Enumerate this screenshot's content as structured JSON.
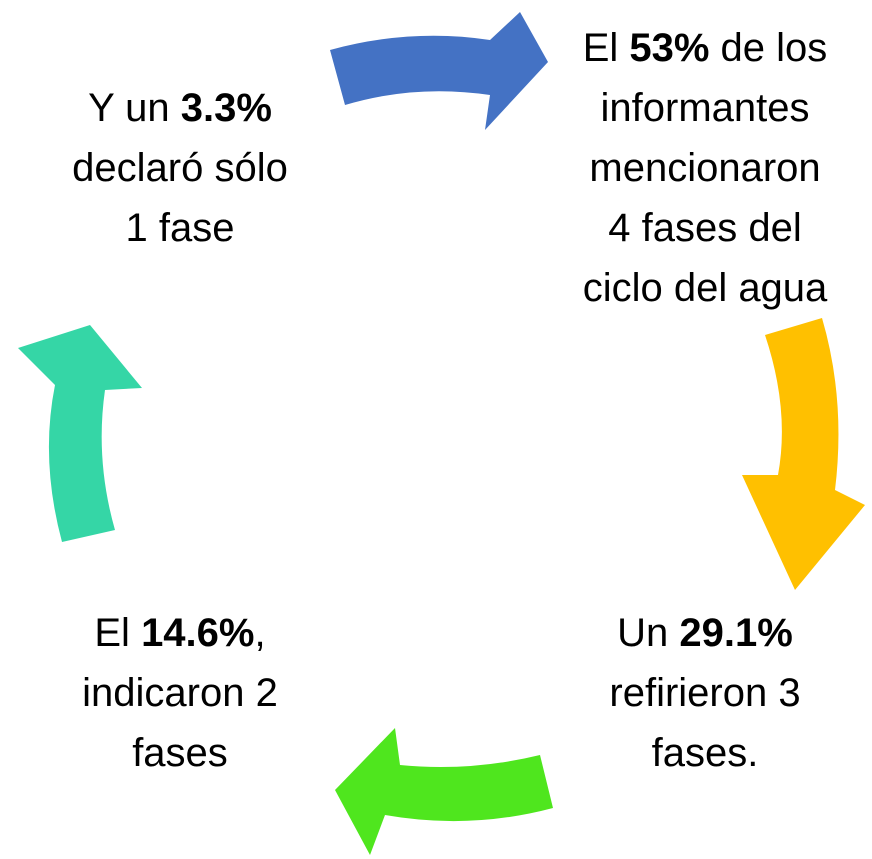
{
  "nodes": [
    {
      "lines": [
        [
          "El ",
          {
            "bold": "53%"
          },
          " de los"
        ],
        [
          "informantes"
        ],
        [
          "mencionaron"
        ],
        [
          "4 fases del"
        ],
        [
          "ciclo del agua"
        ]
      ]
    },
    {
      "lines": [
        [
          "Un ",
          {
            "bold": "29.1%"
          }
        ],
        [
          "refirieron 3"
        ],
        [
          "fases."
        ]
      ]
    },
    {
      "lines": [
        [
          "El ",
          {
            "bold": "14.6%"
          },
          ","
        ],
        [
          "indicaron 2"
        ],
        [
          "fases"
        ]
      ]
    },
    {
      "lines": [
        [
          "Y un ",
          {
            "bold": "3.3%"
          }
        ],
        [
          "declaró sólo"
        ],
        [
          "1 fase"
        ]
      ]
    }
  ]
}
